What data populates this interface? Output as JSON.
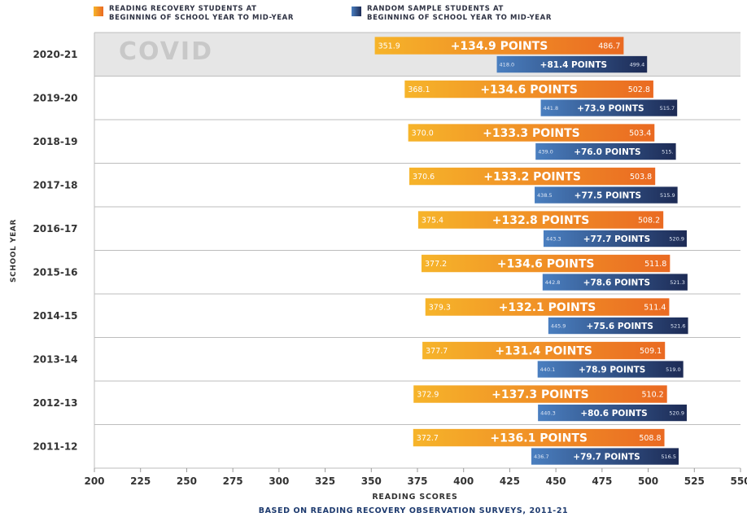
{
  "legend": {
    "rr_line1": "READING RECOVERY STUDENTS AT",
    "rr_line2": "BEGINNING OF SCHOOL YEAR TO MID-YEAR",
    "rs_line1": "RANDOM SAMPLE STUDENTS AT",
    "rs_line2": "BEGINNING OF SCHOOL YEAR TO MID-YEAR"
  },
  "colors": {
    "rr_start": "#f6b42a",
    "rr_end": "#ea6a22",
    "rs_start": "#4a7fc0",
    "rs_end": "#1d2b55",
    "covid_band": "#e6e6e6",
    "covid_text": "#c8c8c8",
    "axis_text": "#333333",
    "footnote": "#1d3a6e"
  },
  "chart_data": {
    "type": "bar",
    "subtype": "floating-range-bar",
    "xlabel": "READING SCORES",
    "ylabel": "SCHOOL YEAR",
    "footnote": "BASED ON READING RECOVERY OBSERVATION SURVEYS, 2011-21",
    "xlim": [
      200,
      550
    ],
    "xticks": [
      200,
      225,
      250,
      275,
      300,
      325,
      350,
      375,
      400,
      425,
      450,
      475,
      500,
      525,
      550
    ],
    "grid": "horizontal separators between years",
    "annotation": {
      "category": "2020-21",
      "text": "COVID"
    },
    "categories": [
      "2020-21",
      "2019-20",
      "2018-19",
      "2017-18",
      "2016-17",
      "2015-16",
      "2014-15",
      "2013-14",
      "2012-13",
      "2011-12"
    ],
    "series": [
      {
        "name": "READING RECOVERY STUDENTS AT BEGINNING OF SCHOOL YEAR TO MID-YEAR",
        "start_labels": [
          "351.9",
          "368.1",
          "370.0",
          "370.6",
          "375.4",
          "377.2",
          "379.3",
          "377.7",
          "372.9",
          "372.7"
        ],
        "end_labels": [
          "486.7",
          "502.8",
          "503.4",
          "503.8",
          "508.2",
          "511.8",
          "511.4",
          "509.1",
          "510.2",
          "508.8"
        ],
        "gain_labels": [
          "+134.9 POINTS",
          "+134.6 POINTS",
          "+133.3 POINTS",
          "+133.2 POINTS",
          "+132.8 POINTS",
          "+134.6 POINTS",
          "+132.1 POINTS",
          "+131.4 POINTS",
          "+137.3 POINTS",
          "+136.1 POINTS"
        ],
        "start": [
          351.9,
          368.1,
          370.0,
          370.6,
          375.4,
          377.2,
          379.3,
          377.7,
          372.9,
          372.7
        ],
        "end": [
          486.7,
          502.8,
          503.4,
          503.8,
          508.2,
          511.8,
          511.4,
          509.1,
          510.2,
          508.8
        ]
      },
      {
        "name": "RANDOM SAMPLE STUDENTS AT BEGINNING OF SCHOOL YEAR TO MID-YEAR",
        "start_labels": [
          "418.0",
          "441.8",
          "439.0",
          "438.5",
          "443.3",
          "442.8",
          "445.9",
          "440.1",
          "440.3",
          "436.7"
        ],
        "end_labels": [
          "499.4",
          "515.7",
          "515.",
          "515.9",
          "520.9",
          "521.3",
          "521.6",
          "519.0",
          "520.9",
          "516.5"
        ],
        "gain_labels": [
          "+81.4 POINTS",
          "+73.9 POINTS",
          "+76.0 POINTS",
          "+77.5 POINTS",
          "+77.7 POINTS",
          "+78.6 POINTS",
          "+75.6 POINTS",
          "+78.9 POINTS",
          "+80.6 POINTS",
          "+79.7 POINTS"
        ],
        "start": [
          418.0,
          441.8,
          439.0,
          438.5,
          443.3,
          442.8,
          445.9,
          440.1,
          440.3,
          436.7
        ],
        "end": [
          499.4,
          515.7,
          515.0,
          515.9,
          520.9,
          521.3,
          521.6,
          519.0,
          520.9,
          516.5
        ]
      }
    ]
  }
}
